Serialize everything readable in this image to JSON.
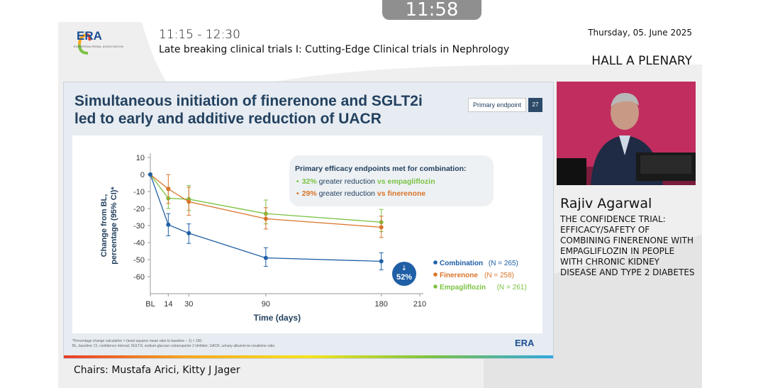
{
  "clock": "11:58",
  "header": {
    "logo_text": "ERA",
    "logo_sub": "EUROPEAN RENAL ASSOCIATION",
    "time_range": "11:15 - 12:30",
    "session_title": "Late breaking clinical trials I: Cutting-Edge Clinical trials in Nephrology",
    "date": "Thursday, 05. June 2025",
    "hall": "HALL A PLENARY"
  },
  "slide": {
    "title_line1": "Simultaneous initiation of finerenone and SGLT2i",
    "title_line2": "led to early and additive reduction of UACR",
    "badge": "Primary endpoint",
    "page_number": "27",
    "callout": {
      "heading": "Primary efficacy endpoints met for combination:",
      "line1_pct": "32%",
      "line1_mid": " greater reduction ",
      "line1_tail": "vs empagliflozin",
      "line2_pct": "29%",
      "line2_mid": " greater reduction ",
      "line2_tail": "vs finerenone"
    },
    "badge_52": "52%",
    "footnote_line1": "*Percentage change calculation = (least squares mean ratio to baseline − 1) × 100.",
    "footnote_line2": "BL, baseline; CI, confidence interval; SGLT2i, sodium-glucose cotransporter 2 inhibitor; UACR, urinary albumin-to-creatinine ratio.",
    "slide_logo": "ERA"
  },
  "colors": {
    "combination": "#1f5fa6",
    "finerenone": "#d9742a",
    "empagliflozin": "#7cc243",
    "title": "#23415f"
  },
  "chart_data": {
    "type": "line",
    "ylabel_line1": "Change from BL,",
    "ylabel_line2": "percentage (95% CI)*",
    "xlabel": "Time (days)",
    "ylim": [
      -70,
      10
    ],
    "yticks": [
      10,
      0,
      -10,
      -20,
      -30,
      -40,
      -50,
      -60
    ],
    "xlim": [
      0,
      210
    ],
    "xticks": [
      {
        "value": 0,
        "label": "BL"
      },
      {
        "value": 14,
        "label": "14"
      },
      {
        "value": 30,
        "label": "30"
      },
      {
        "value": 90,
        "label": "90"
      },
      {
        "value": 180,
        "label": "180"
      },
      {
        "value": 210,
        "label": "210"
      }
    ],
    "series": [
      {
        "name": "Combination",
        "n": "(N = 265)",
        "x": [
          0,
          14,
          30,
          90,
          180
        ],
        "y": [
          0,
          -29.5,
          -34.5,
          -49,
          -51
        ],
        "err_low": [
          0,
          -36,
          -40.5,
          -54,
          -56
        ],
        "err_high": [
          0,
          -23,
          -29,
          -43,
          -46
        ]
      },
      {
        "name": "Finerenone",
        "n": "(N = 258)",
        "x": [
          0,
          14,
          30,
          90,
          180
        ],
        "y": [
          0,
          -8.5,
          -16,
          -26,
          -31
        ],
        "err_low": [
          0,
          -17,
          -24,
          -32,
          -37
        ],
        "err_high": [
          0,
          0,
          -7.5,
          -19.5,
          -24.5
        ]
      },
      {
        "name": "Empagliflozin",
        "n": "(N = 261)",
        "x": [
          0,
          14,
          30,
          90,
          180
        ],
        "y": [
          0,
          -14,
          -14.5,
          -23,
          -28
        ],
        "err_low": [
          0,
          -20,
          -21,
          -29,
          -33.5
        ],
        "err_high": [
          0,
          -7.5,
          -6.5,
          -15,
          -20.5
        ]
      }
    ],
    "legend_position": "bottom-right"
  },
  "speaker": {
    "name": "Rajiv Agarwal",
    "talk_title": "THE CONFIDENCE TRIAL: EFFICACY/SAFETY OF COMBINING FINERENONE WITH EMPAGLIFLOZIN IN PEOPLE WITH CHRONIC KIDNEY DISEASE AND TYPE 2 DIABETES"
  },
  "chairs": "Chairs: Mustafa Arici, Kitty J Jager"
}
